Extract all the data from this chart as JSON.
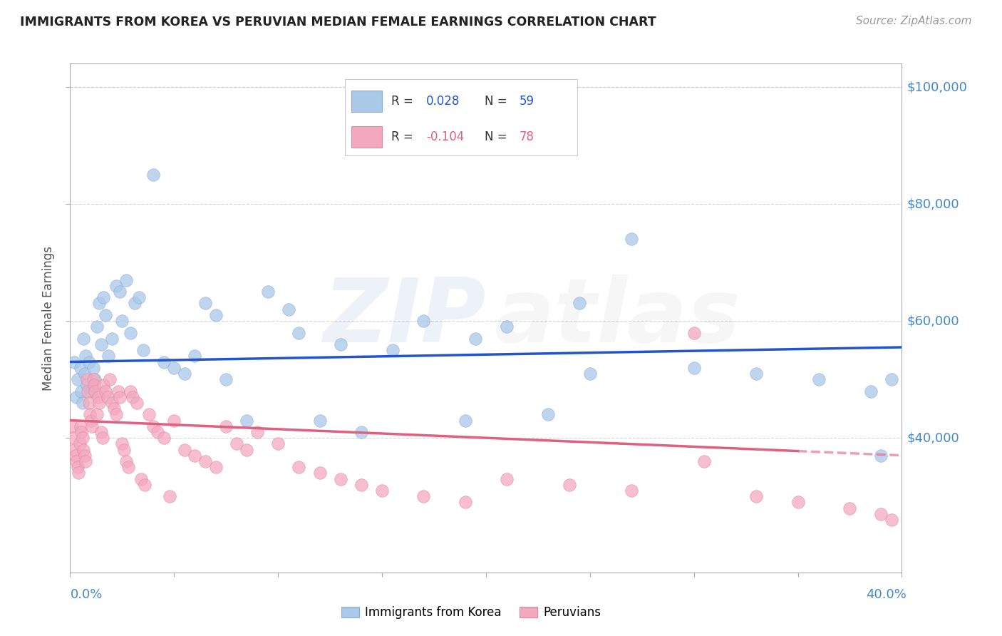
{
  "title": "IMMIGRANTS FROM KOREA VS PERUVIAN MEDIAN FEMALE EARNINGS CORRELATION CHART",
  "source": "Source: ZipAtlas.com",
  "ylabel": "Median Female Earnings",
  "korea_color": "#aac8e8",
  "peru_color": "#f4a8be",
  "korea_line_color": "#2255cc",
  "peru_line_color": "#e06080",
  "background_color": "#ffffff",
  "grid_color": "#cccccc",
  "right_label_color": "#4488cc",
  "title_color": "#222222",
  "source_color": "#999999",
  "watermark_blue": "#5588cc",
  "watermark_gray": "#aaaaaa",
  "korea_R": "0.028",
  "korea_N": "59",
  "peru_R": "-0.104",
  "peru_N": "78",
  "xlim": [
    0,
    40
  ],
  "ylim": [
    17000,
    104000
  ],
  "yticks": [
    40000,
    60000,
    80000,
    100000
  ],
  "korea_trendline": [
    53000,
    55500
  ],
  "peru_trendline": [
    43000,
    37000
  ],
  "korea_x": [
    0.2,
    0.3,
    0.35,
    0.5,
    0.55,
    0.6,
    0.65,
    0.7,
    0.75,
    0.8,
    0.9,
    1.0,
    1.1,
    1.2,
    1.3,
    1.4,
    1.5,
    1.6,
    1.7,
    1.85,
    2.0,
    2.2,
    2.4,
    2.5,
    2.7,
    2.9,
    3.1,
    3.3,
    3.5,
    4.0,
    4.5,
    5.0,
    5.5,
    6.0,
    6.5,
    7.0,
    7.5,
    8.5,
    9.5,
    10.5,
    11.0,
    12.0,
    13.0,
    14.0,
    15.5,
    17.0,
    19.0,
    21.0,
    23.0,
    25.0,
    27.0,
    30.0,
    33.0,
    36.0,
    38.5,
    39.0,
    39.5,
    19.5,
    24.5
  ],
  "korea_y": [
    53000,
    47000,
    50000,
    52000,
    48000,
    46000,
    57000,
    51000,
    54000,
    49000,
    53000,
    48000,
    52000,
    50000,
    59000,
    63000,
    56000,
    64000,
    61000,
    54000,
    57000,
    66000,
    65000,
    60000,
    67000,
    58000,
    63000,
    64000,
    55000,
    85000,
    53000,
    52000,
    51000,
    54000,
    63000,
    61000,
    50000,
    43000,
    65000,
    62000,
    58000,
    43000,
    56000,
    41000,
    55000,
    60000,
    43000,
    59000,
    44000,
    51000,
    74000,
    52000,
    51000,
    50000,
    48000,
    37000,
    50000,
    57000,
    63000
  ],
  "peru_x": [
    0.1,
    0.15,
    0.2,
    0.25,
    0.3,
    0.35,
    0.4,
    0.45,
    0.5,
    0.55,
    0.6,
    0.65,
    0.7,
    0.75,
    0.8,
    0.85,
    0.9,
    0.95,
    1.0,
    1.05,
    1.1,
    1.15,
    1.2,
    1.3,
    1.35,
    1.4,
    1.5,
    1.55,
    1.6,
    1.7,
    1.8,
    1.9,
    2.0,
    2.1,
    2.2,
    2.3,
    2.4,
    2.5,
    2.6,
    2.7,
    2.8,
    2.9,
    3.0,
    3.2,
    3.4,
    3.6,
    3.8,
    4.0,
    4.2,
    4.5,
    4.8,
    5.0,
    5.5,
    6.0,
    6.5,
    7.0,
    7.5,
    8.0,
    8.5,
    9.0,
    10.0,
    11.0,
    12.0,
    13.0,
    14.0,
    15.0,
    17.0,
    19.0,
    21.0,
    24.0,
    27.0,
    30.0,
    33.0,
    35.0,
    37.5,
    39.0,
    39.5,
    30.5
  ],
  "peru_y": [
    42000,
    40000,
    38000,
    37000,
    36000,
    35000,
    34000,
    39000,
    42000,
    41000,
    40000,
    38000,
    37000,
    36000,
    50000,
    48000,
    46000,
    44000,
    43000,
    42000,
    50000,
    49000,
    48000,
    44000,
    47000,
    46000,
    41000,
    40000,
    49000,
    48000,
    47000,
    50000,
    46000,
    45000,
    44000,
    48000,
    47000,
    39000,
    38000,
    36000,
    35000,
    48000,
    47000,
    46000,
    33000,
    32000,
    44000,
    42000,
    41000,
    40000,
    30000,
    43000,
    38000,
    37000,
    36000,
    35000,
    42000,
    39000,
    38000,
    41000,
    39000,
    35000,
    34000,
    33000,
    32000,
    31000,
    30000,
    29000,
    33000,
    32000,
    31000,
    58000,
    30000,
    29000,
    28000,
    27000,
    26000,
    36000
  ]
}
